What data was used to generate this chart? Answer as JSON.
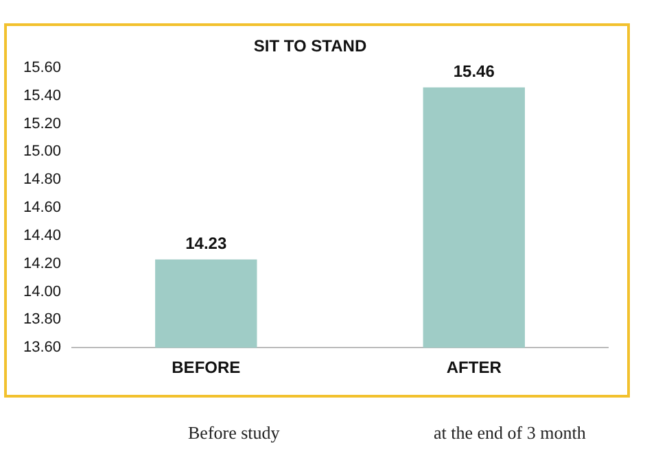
{
  "chart_data": {
    "type": "bar",
    "title": "SIT TO STAND",
    "categories": [
      "BEFORE",
      "AFTER"
    ],
    "values": [
      14.23,
      15.46
    ],
    "color": "#9fccc6",
    "ylim": [
      13.6,
      15.6
    ],
    "yticks": [
      {
        "value": 13.6,
        "label": "13.60"
      },
      {
        "value": 13.8,
        "label": "13.80"
      },
      {
        "value": 14,
        "label": "14.00"
      },
      {
        "value": 14.2,
        "label": "14.20"
      },
      {
        "value": 14.4,
        "label": "14.40"
      },
      {
        "value": 14.6,
        "label": "14.60"
      },
      {
        "value": 14.8,
        "label": "14.80"
      },
      {
        "value": 15,
        "label": "15.00"
      },
      {
        "value": 15.2,
        "label": "15.20"
      },
      {
        "value": 15.4,
        "label": "15.40"
      },
      {
        "value": 15.6,
        "label": "15.60"
      }
    ],
    "grid": false,
    "data_labels": true,
    "annotations": [
      "Before study",
      "at the end of 3 month"
    ]
  }
}
